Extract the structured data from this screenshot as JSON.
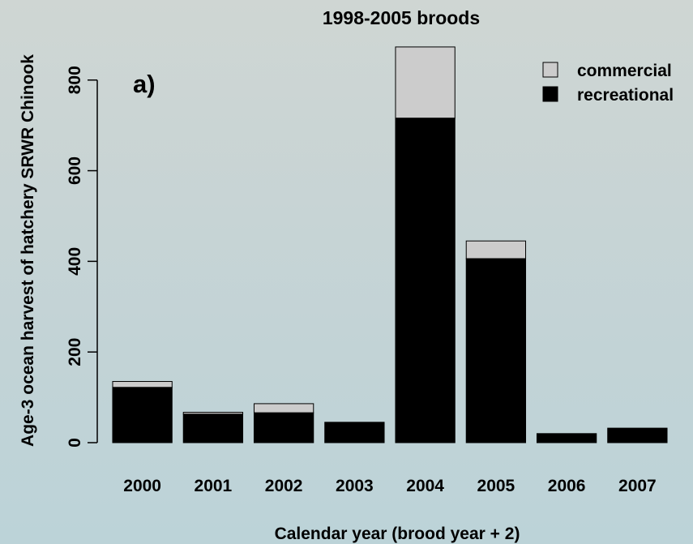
{
  "chart_data": {
    "type": "bar",
    "stacked": true,
    "title": "1998-2005 broods",
    "panel_label": "a)",
    "xlabel": "Calendar year (brood year + 2)",
    "ylabel": "Age-3 ocean harvest of hatchery SRWR Chinook",
    "categories": [
      "2000",
      "2001",
      "2002",
      "2003",
      "2004",
      "2005",
      "2006",
      "2007"
    ],
    "ylim": [
      0,
      880
    ],
    "yticks": [
      0,
      200,
      400,
      600,
      800
    ],
    "series": [
      {
        "name": "recreational",
        "color": "#000000",
        "values": [
          122,
          63,
          66,
          45,
          716,
          406,
          20,
          32
        ]
      },
      {
        "name": "commercial",
        "color": "#cccccc",
        "values": [
          13,
          4,
          20,
          0,
          157,
          39,
          0,
          0
        ]
      }
    ],
    "legend": {
      "position": "top-right",
      "entries": [
        {
          "label": "commercial",
          "color": "#cccccc"
        },
        {
          "label": "recreational",
          "color": "#000000"
        }
      ]
    },
    "grid": false
  }
}
